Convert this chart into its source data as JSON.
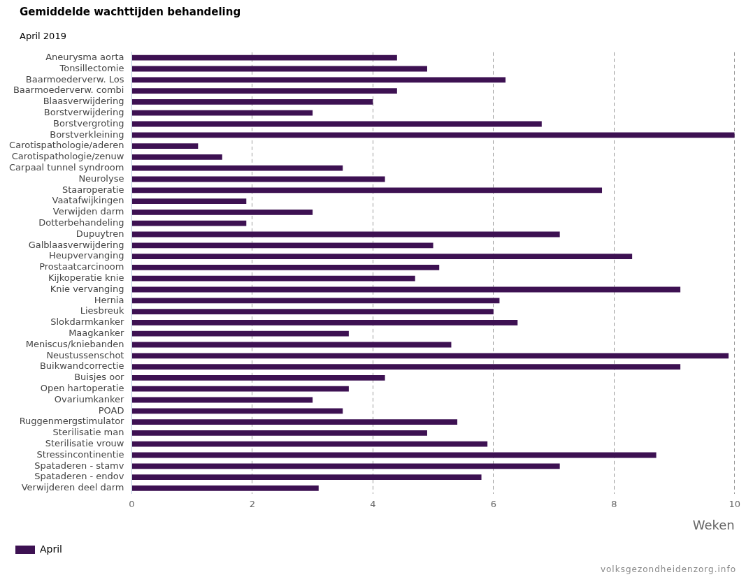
{
  "chart_data": {
    "type": "bar",
    "orientation": "horizontal",
    "title": "Gemiddelde wachttijden behandeling",
    "subtitle": "April 2019",
    "xlabel": "Weken",
    "categories": [
      "Aneurysma aorta",
      "Tonsillectomie",
      "Baarmoederverw. Los",
      "Baarmoederverw. combi",
      "Blaasverwijdering",
      "Borstverwijdering",
      "Borstvergroting",
      "Borstverkleining",
      "Carotispathologie/aderen",
      "Carotispathologie/zenuw",
      "Carpaal tunnel syndroom",
      "Neurolyse",
      "Staaroperatie",
      "Vaatafwijkingen",
      "Verwijden darm",
      "Dotterbehandeling",
      "Dupuytren",
      "Galblaasverwijdering",
      "Heupvervanging",
      "Prostaatcarcinoom",
      "Kijkoperatie knie",
      "Knie vervanging",
      "Hernia",
      "Liesbreuk",
      "Slokdarmkanker",
      "Maagkanker",
      "Meniscus/kniebanden",
      "Neustussenschot",
      "Buikwandcorrectie",
      "Buisjes oor",
      "Open hartoperatie",
      "Ovariumkanker",
      "POAD",
      "Ruggenmergstimulator",
      "Sterilisatie man",
      "Sterilisatie vrouw",
      "Stressincontinentie",
      "Spataderen - stamv",
      "Spataderen - endov",
      "Verwijderen deel darm"
    ],
    "series": [
      {
        "name": "April",
        "color": "#3d1152",
        "values": [
          4.4,
          4.9,
          6.2,
          4.4,
          4.0,
          3.0,
          6.8,
          10.0,
          1.1,
          1.5,
          3.5,
          4.2,
          7.8,
          1.9,
          3.0,
          1.9,
          7.1,
          5.0,
          8.3,
          5.1,
          4.7,
          9.1,
          6.1,
          6.0,
          6.4,
          3.6,
          5.3,
          9.9,
          9.1,
          4.2,
          3.6,
          3.0,
          3.5,
          5.4,
          4.9,
          5.9,
          8.7,
          7.1,
          5.8,
          3.1
        ]
      }
    ],
    "xlim": [
      0,
      10
    ],
    "xticks": [
      0,
      2,
      4,
      6,
      8,
      10
    ],
    "grid": "x",
    "legend": "bottom",
    "annotations": [
      "volksgezondheidenzorg.info"
    ]
  }
}
